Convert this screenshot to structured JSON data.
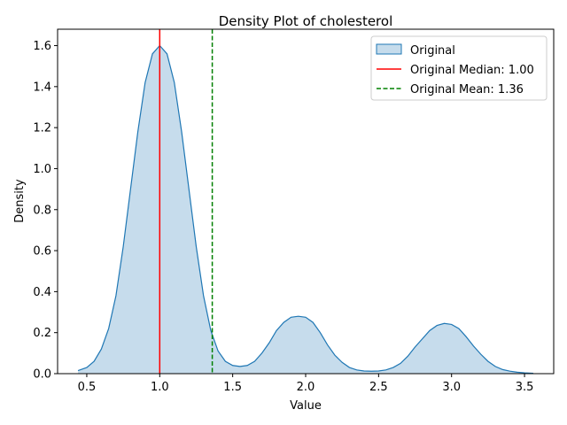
{
  "chart_data": {
    "type": "area",
    "title": "Density Plot of cholesterol",
    "xlabel": "Value",
    "ylabel": "Density",
    "xlim": [
      0.3,
      3.7
    ],
    "ylim": [
      0,
      1.68
    ],
    "xticks": [
      0.5,
      1.0,
      1.5,
      2.0,
      2.5,
      3.0,
      3.5
    ],
    "xtick_labels": [
      "0.5",
      "1.0",
      "1.5",
      "2.0",
      "2.5",
      "3.0",
      "3.5"
    ],
    "yticks": [
      0.0,
      0.2,
      0.4,
      0.6,
      0.8,
      1.0,
      1.2,
      1.4,
      1.6
    ],
    "ytick_labels": [
      "0.0",
      "0.2",
      "0.4",
      "0.6",
      "0.8",
      "1.0",
      "1.2",
      "1.4",
      "1.6"
    ],
    "grid": false,
    "legend_position": "top-right",
    "series": [
      {
        "name": "Original",
        "color": "#1f77b4",
        "fill_color": "#c6dcec",
        "x": [
          0.44,
          0.5,
          0.55,
          0.6,
          0.65,
          0.7,
          0.75,
          0.8,
          0.85,
          0.9,
          0.95,
          1.0,
          1.05,
          1.1,
          1.15,
          1.2,
          1.25,
          1.3,
          1.35,
          1.4,
          1.45,
          1.5,
          1.55,
          1.6,
          1.65,
          1.7,
          1.75,
          1.8,
          1.85,
          1.9,
          1.95,
          2.0,
          2.05,
          2.1,
          2.15,
          2.2,
          2.25,
          2.3,
          2.35,
          2.4,
          2.45,
          2.5,
          2.55,
          2.6,
          2.65,
          2.7,
          2.75,
          2.8,
          2.85,
          2.9,
          2.95,
          3.0,
          3.05,
          3.1,
          3.15,
          3.2,
          3.25,
          3.3,
          3.35,
          3.4,
          3.45,
          3.5,
          3.56
        ],
        "y": [
          0.015,
          0.03,
          0.06,
          0.12,
          0.22,
          0.38,
          0.62,
          0.9,
          1.18,
          1.42,
          1.56,
          1.6,
          1.56,
          1.42,
          1.18,
          0.9,
          0.62,
          0.38,
          0.21,
          0.11,
          0.06,
          0.04,
          0.035,
          0.04,
          0.06,
          0.1,
          0.15,
          0.21,
          0.25,
          0.275,
          0.28,
          0.275,
          0.25,
          0.2,
          0.14,
          0.09,
          0.055,
          0.03,
          0.018,
          0.013,
          0.012,
          0.013,
          0.018,
          0.03,
          0.05,
          0.085,
          0.13,
          0.17,
          0.21,
          0.235,
          0.245,
          0.24,
          0.22,
          0.18,
          0.135,
          0.095,
          0.06,
          0.035,
          0.02,
          0.012,
          0.007,
          0.004,
          0.002
        ]
      }
    ],
    "vlines": [
      {
        "name": "Original Median: 1.00",
        "x": 1.0,
        "color": "#ff0000",
        "style": "solid"
      },
      {
        "name": "Original Mean: 1.36",
        "x": 1.36,
        "color": "#008000",
        "style": "dashed"
      }
    ]
  }
}
